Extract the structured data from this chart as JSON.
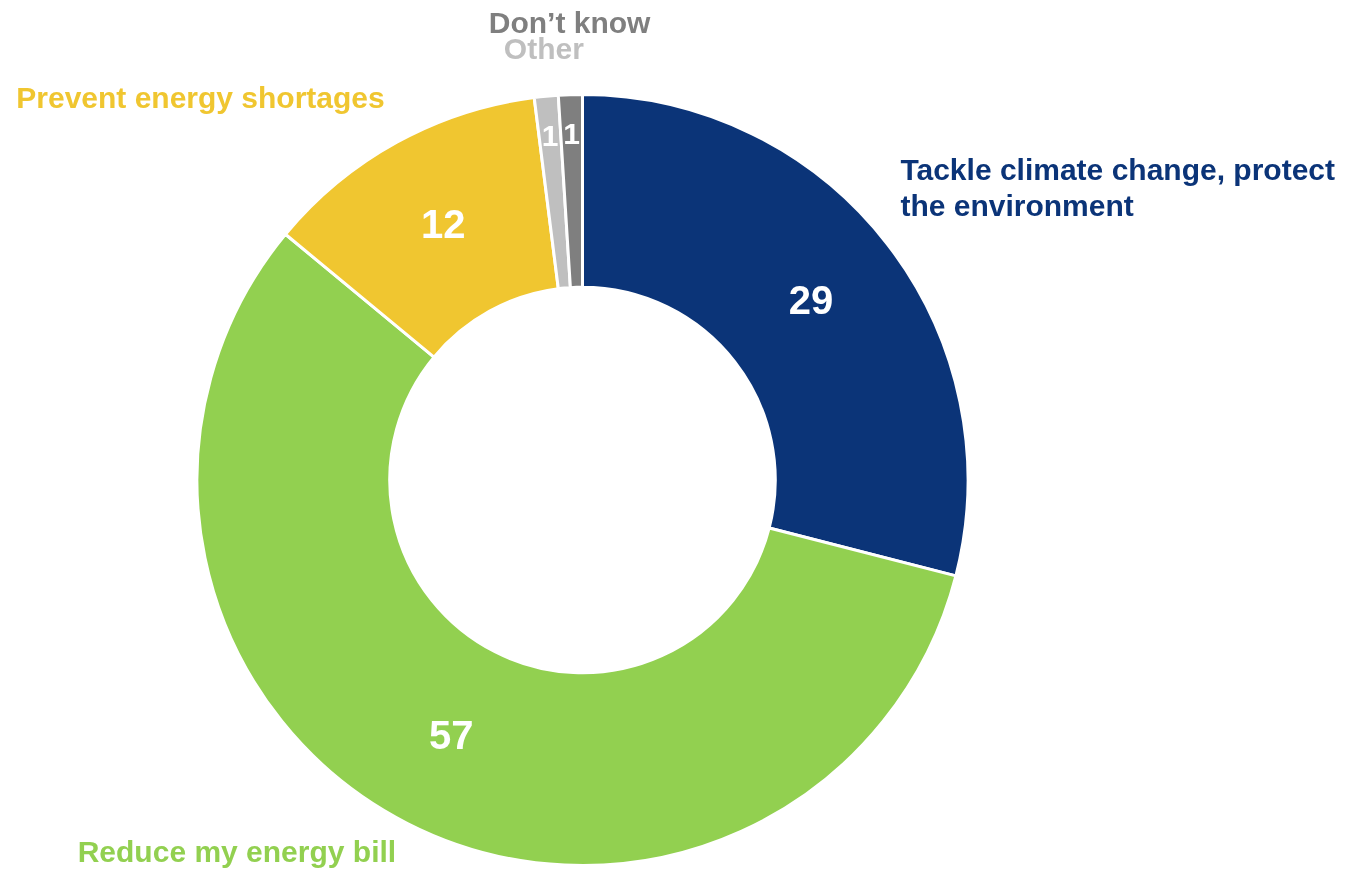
{
  "chart_data": {
    "type": "donut",
    "categories": [
      "Tackle climate change, protect the environment",
      "Reduce my energy bill",
      "Prevent energy shortages",
      "Other",
      "Don’t know"
    ],
    "values": [
      29,
      57,
      12,
      1,
      1
    ],
    "colors": [
      "#0b3478",
      "#92d050",
      "#f0c630",
      "#bfbfbf",
      "#7f7f7f"
    ],
    "data_labels": true,
    "legend": false
  }
}
